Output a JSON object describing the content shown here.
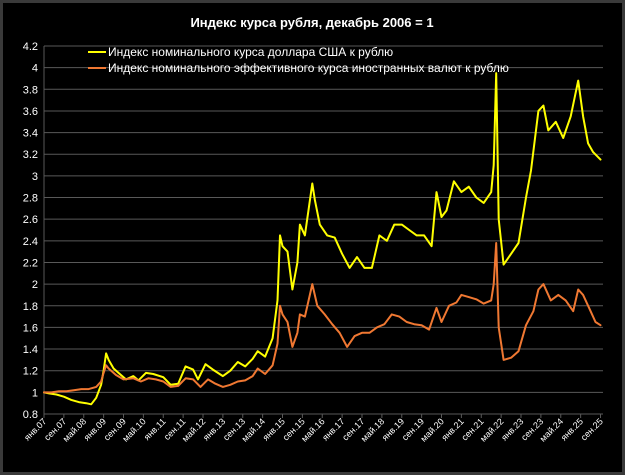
{
  "colors": {
    "background": "#000000",
    "frame": "#3a3a3a",
    "grid": "#595959",
    "text": "#ffffff",
    "series_usd": "#ffff00",
    "series_neer": "#f07832"
  },
  "chart_data": {
    "type": "line",
    "title": "Индекс курса рубля, декабрь 2006 =  1",
    "xlabel": "",
    "ylabel": "",
    "xlim": [
      "2007-01",
      "2025-10"
    ],
    "ylim": [
      0.8,
      4.2
    ],
    "y_ticks": [
      0.8,
      1,
      1.2,
      1.4,
      1.6,
      1.8,
      2,
      2.2,
      2.4,
      2.6,
      2.8,
      3,
      3.2,
      3.4,
      3.6,
      3.8,
      4,
      4.2
    ],
    "x_ticks": [
      "янв.07",
      "сен.07",
      "май.08",
      "янв.09",
      "сен.09",
      "май.10",
      "янв.11",
      "сен.11",
      "май.12",
      "янв.13",
      "сен.13",
      "май.14",
      "янв.15",
      "сен.15",
      "май.16",
      "янв.17",
      "сен.17",
      "май.18",
      "янв.19",
      "сен.19",
      "май.20",
      "янв.21",
      "сен.21",
      "май.22",
      "янв.23",
      "сен.23",
      "май.24",
      "янв.25",
      "сен.25"
    ],
    "grid": true,
    "legend": "top-left, inside plot",
    "series": [
      {
        "name": "Индекс номинального курса доллара США к рублю",
        "color": "#ffff00",
        "points": [
          [
            "2007-01",
            1.0
          ],
          [
            "2007-03",
            0.99
          ],
          [
            "2007-06",
            0.98
          ],
          [
            "2007-09",
            0.96
          ],
          [
            "2007-12",
            0.93
          ],
          [
            "2008-03",
            0.91
          ],
          [
            "2008-06",
            0.9
          ],
          [
            "2008-08",
            0.89
          ],
          [
            "2008-10",
            0.95
          ],
          [
            "2008-12",
            1.07
          ],
          [
            "2009-01",
            1.2
          ],
          [
            "2009-02",
            1.36
          ],
          [
            "2009-03",
            1.3
          ],
          [
            "2009-05",
            1.22
          ],
          [
            "2009-07",
            1.18
          ],
          [
            "2009-10",
            1.12
          ],
          [
            "2010-01",
            1.15
          ],
          [
            "2010-03",
            1.11
          ],
          [
            "2010-06",
            1.18
          ],
          [
            "2010-09",
            1.17
          ],
          [
            "2011-01",
            1.14
          ],
          [
            "2011-04",
            1.07
          ],
          [
            "2011-07",
            1.08
          ],
          [
            "2011-10",
            1.24
          ],
          [
            "2012-01",
            1.21
          ],
          [
            "2012-03",
            1.12
          ],
          [
            "2012-06",
            1.26
          ],
          [
            "2012-09",
            1.21
          ],
          [
            "2013-01",
            1.15
          ],
          [
            "2013-04",
            1.2
          ],
          [
            "2013-07",
            1.28
          ],
          [
            "2013-10",
            1.24
          ],
          [
            "2014-01",
            1.31
          ],
          [
            "2014-03",
            1.38
          ],
          [
            "2014-06",
            1.33
          ],
          [
            "2014-09",
            1.5
          ],
          [
            "2014-11",
            1.85
          ],
          [
            "2014-12",
            2.45
          ],
          [
            "2015-01",
            2.35
          ],
          [
            "2015-03",
            2.3
          ],
          [
            "2015-05",
            1.95
          ],
          [
            "2015-07",
            2.2
          ],
          [
            "2015-08",
            2.55
          ],
          [
            "2015-10",
            2.45
          ],
          [
            "2016-01",
            2.93
          ],
          [
            "2016-02",
            2.78
          ],
          [
            "2016-04",
            2.55
          ],
          [
            "2016-07",
            2.45
          ],
          [
            "2016-10",
            2.43
          ],
          [
            "2017-01",
            2.28
          ],
          [
            "2017-04",
            2.15
          ],
          [
            "2017-07",
            2.25
          ],
          [
            "2017-10",
            2.15
          ],
          [
            "2018-01",
            2.15
          ],
          [
            "2018-04",
            2.45
          ],
          [
            "2018-07",
            2.4
          ],
          [
            "2018-10",
            2.55
          ],
          [
            "2019-01",
            2.55
          ],
          [
            "2019-04",
            2.5
          ],
          [
            "2019-07",
            2.45
          ],
          [
            "2019-10",
            2.45
          ],
          [
            "2020-01",
            2.35
          ],
          [
            "2020-03",
            2.85
          ],
          [
            "2020-05",
            2.62
          ],
          [
            "2020-07",
            2.68
          ],
          [
            "2020-10",
            2.95
          ],
          [
            "2021-01",
            2.85
          ],
          [
            "2021-04",
            2.9
          ],
          [
            "2021-07",
            2.8
          ],
          [
            "2021-10",
            2.75
          ],
          [
            "2022-01",
            2.85
          ],
          [
            "2022-02",
            3.1
          ],
          [
            "2022-03",
            3.95
          ],
          [
            "2022-04",
            2.6
          ],
          [
            "2022-06",
            2.18
          ],
          [
            "2022-09",
            2.28
          ],
          [
            "2022-12",
            2.38
          ],
          [
            "2023-03",
            2.8
          ],
          [
            "2023-05",
            3.05
          ],
          [
            "2023-08",
            3.6
          ],
          [
            "2023-10",
            3.65
          ],
          [
            "2023-12",
            3.42
          ],
          [
            "2024-03",
            3.5
          ],
          [
            "2024-06",
            3.35
          ],
          [
            "2024-09",
            3.55
          ],
          [
            "2024-12",
            3.88
          ],
          [
            "2025-02",
            3.55
          ],
          [
            "2025-04",
            3.3
          ],
          [
            "2025-06",
            3.22
          ],
          [
            "2025-09",
            3.15
          ]
        ]
      },
      {
        "name": "Индекс номинального эффективного курса иностранных валют к рублю",
        "color": "#f07832",
        "points": [
          [
            "2007-01",
            1.0
          ],
          [
            "2007-04",
            1.0
          ],
          [
            "2007-07",
            1.01
          ],
          [
            "2007-10",
            1.01
          ],
          [
            "2008-01",
            1.02
          ],
          [
            "2008-04",
            1.03
          ],
          [
            "2008-07",
            1.03
          ],
          [
            "2008-10",
            1.05
          ],
          [
            "2008-12",
            1.1
          ],
          [
            "2009-01",
            1.18
          ],
          [
            "2009-02",
            1.25
          ],
          [
            "2009-03",
            1.22
          ],
          [
            "2009-06",
            1.16
          ],
          [
            "2009-09",
            1.12
          ],
          [
            "2010-01",
            1.13
          ],
          [
            "2010-04",
            1.1
          ],
          [
            "2010-07",
            1.13
          ],
          [
            "2010-10",
            1.12
          ],
          [
            "2011-01",
            1.1
          ],
          [
            "2011-04",
            1.05
          ],
          [
            "2011-07",
            1.06
          ],
          [
            "2011-10",
            1.13
          ],
          [
            "2012-01",
            1.12
          ],
          [
            "2012-04",
            1.05
          ],
          [
            "2012-07",
            1.12
          ],
          [
            "2012-10",
            1.08
          ],
          [
            "2013-01",
            1.05
          ],
          [
            "2013-04",
            1.07
          ],
          [
            "2013-07",
            1.1
          ],
          [
            "2013-10",
            1.11
          ],
          [
            "2014-01",
            1.15
          ],
          [
            "2014-03",
            1.22
          ],
          [
            "2014-06",
            1.17
          ],
          [
            "2014-09",
            1.25
          ],
          [
            "2014-11",
            1.45
          ],
          [
            "2014-12",
            1.8
          ],
          [
            "2015-01",
            1.72
          ],
          [
            "2015-03",
            1.65
          ],
          [
            "2015-05",
            1.42
          ],
          [
            "2015-07",
            1.55
          ],
          [
            "2015-08",
            1.72
          ],
          [
            "2015-10",
            1.7
          ],
          [
            "2016-01",
            2.0
          ],
          [
            "2016-03",
            1.8
          ],
          [
            "2016-06",
            1.72
          ],
          [
            "2016-09",
            1.63
          ],
          [
            "2016-12",
            1.55
          ],
          [
            "2017-03",
            1.42
          ],
          [
            "2017-06",
            1.52
          ],
          [
            "2017-09",
            1.55
          ],
          [
            "2017-12",
            1.55
          ],
          [
            "2018-03",
            1.6
          ],
          [
            "2018-06",
            1.63
          ],
          [
            "2018-09",
            1.72
          ],
          [
            "2018-12",
            1.7
          ],
          [
            "2019-03",
            1.65
          ],
          [
            "2019-06",
            1.63
          ],
          [
            "2019-09",
            1.62
          ],
          [
            "2019-12",
            1.58
          ],
          [
            "2020-03",
            1.78
          ],
          [
            "2020-05",
            1.65
          ],
          [
            "2020-08",
            1.8
          ],
          [
            "2020-11",
            1.83
          ],
          [
            "2021-01",
            1.9
          ],
          [
            "2021-04",
            1.88
          ],
          [
            "2021-07",
            1.86
          ],
          [
            "2021-10",
            1.82
          ],
          [
            "2022-01",
            1.85
          ],
          [
            "2022-02",
            2.0
          ],
          [
            "2022-03",
            2.38
          ],
          [
            "2022-04",
            1.6
          ],
          [
            "2022-06",
            1.3
          ],
          [
            "2022-09",
            1.32
          ],
          [
            "2022-12",
            1.38
          ],
          [
            "2023-03",
            1.62
          ],
          [
            "2023-06",
            1.75
          ],
          [
            "2023-08",
            1.95
          ],
          [
            "2023-10",
            2.0
          ],
          [
            "2024-01",
            1.85
          ],
          [
            "2024-04",
            1.9
          ],
          [
            "2024-07",
            1.85
          ],
          [
            "2024-10",
            1.75
          ],
          [
            "2024-12",
            1.95
          ],
          [
            "2025-02",
            1.9
          ],
          [
            "2025-05",
            1.75
          ],
          [
            "2025-07",
            1.65
          ],
          [
            "2025-09",
            1.62
          ]
        ]
      }
    ]
  }
}
